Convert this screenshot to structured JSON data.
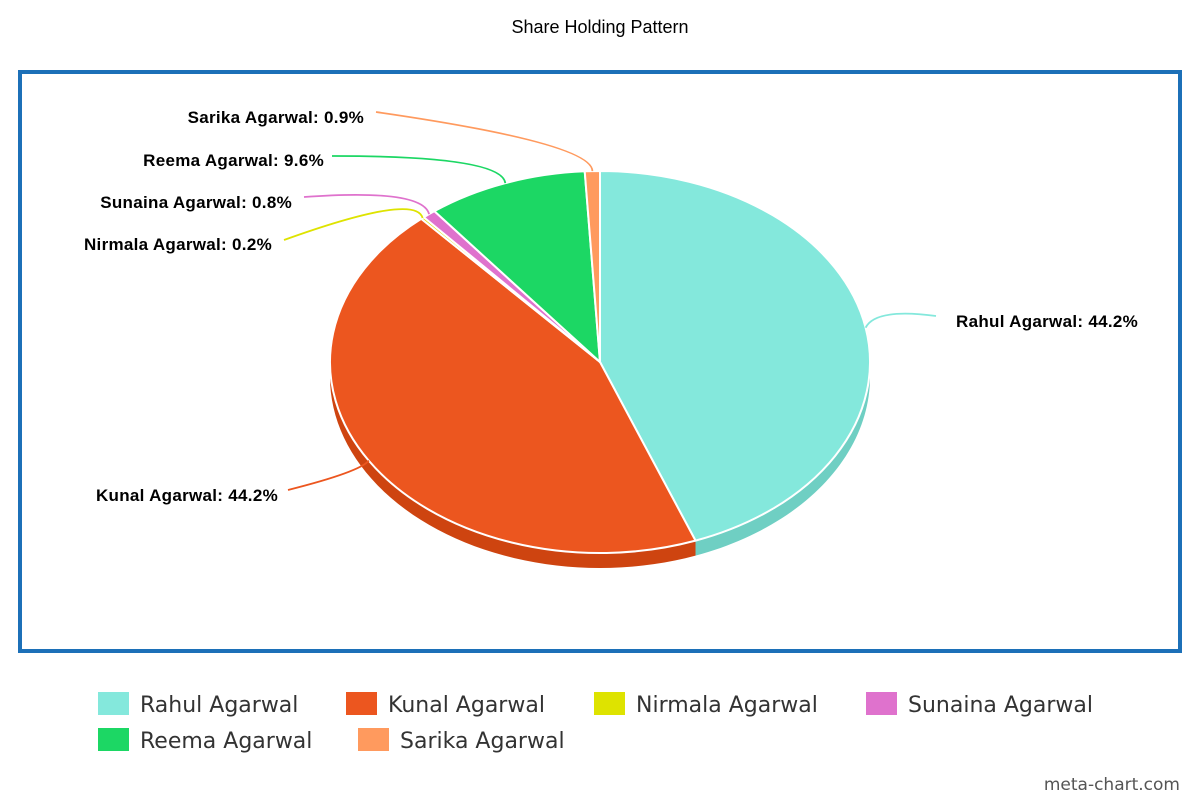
{
  "chart_data": {
    "type": "pie",
    "title": "Share Holding Pattern",
    "slices": [
      {
        "name": "Rahul Agarwal",
        "value": 44.2,
        "label": "Rahul Agarwal: 44.2%",
        "color": "#84E8DC",
        "side_color": "#6FCFC3"
      },
      {
        "name": "Kunal Agarwal",
        "value": 44.2,
        "label": "Kunal Agarwal: 44.2%",
        "color": "#EC561F",
        "side_color": "#CE4410"
      },
      {
        "name": "Nirmala Agarwal",
        "value": 0.2,
        "label": "Nirmala Agarwal: 0.2%",
        "color": "#DEE300",
        "side_color": "#BFC400"
      },
      {
        "name": "Sunaina Agarwal",
        "value": 0.8,
        "label": "Sunaina Agarwal: 0.8%",
        "color": "#DF72CD",
        "side_color": "#C25CB1"
      },
      {
        "name": "Reema Agarwal",
        "value": 9.6,
        "label": "Reema Agarwal: 9.6%",
        "color": "#1CD764",
        "side_color": "#15B553"
      },
      {
        "name": "Sarika Agarwal",
        "value": 0.9,
        "label": "Sarika Agarwal: 0.9%",
        "color": "#FF9A5E",
        "side_color": "#E27F45"
      }
    ],
    "legend_placement": "bottom"
  },
  "frame_color": "#1C70B8",
  "credit": "meta-chart.com"
}
